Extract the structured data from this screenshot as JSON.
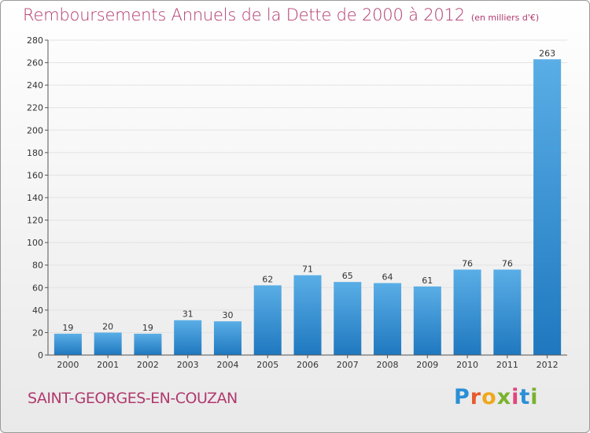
{
  "header": {
    "title": "Remboursements Annuels de la Dette de 2000 à 2012",
    "unit": "(en milliers d'€)"
  },
  "footer": {
    "commune": "SAINT-GEORGES-EN-COUZAN",
    "logo_letters": [
      "P",
      "r",
      "o",
      "x",
      "i",
      "t",
      "i"
    ],
    "logo_colors": [
      "#2a8fd6",
      "#e85a2c",
      "#f0a81c",
      "#7ab22e",
      "#e0457b",
      "#2a8fd6",
      "#7ab22e"
    ]
  },
  "colors": {
    "bar_light": "#5aaee6",
    "bar_dark": "#1f78bf",
    "title": "#b03a6e",
    "grid": "#e2e2e2"
  },
  "chart_data": {
    "type": "bar",
    "title": "Remboursements Annuels de la Dette de 2000 à 2012",
    "categories": [
      "2000",
      "2001",
      "2002",
      "2003",
      "2004",
      "2005",
      "2006",
      "2007",
      "2008",
      "2009",
      "2010",
      "2011",
      "2012"
    ],
    "values": [
      19,
      20,
      19,
      31,
      30,
      62,
      71,
      65,
      64,
      61,
      76,
      76,
      263
    ],
    "ylim": [
      0,
      280
    ],
    "yticks": [
      0,
      20,
      40,
      60,
      80,
      100,
      120,
      140,
      160,
      180,
      200,
      220,
      240,
      260,
      280
    ],
    "grid": true
  }
}
